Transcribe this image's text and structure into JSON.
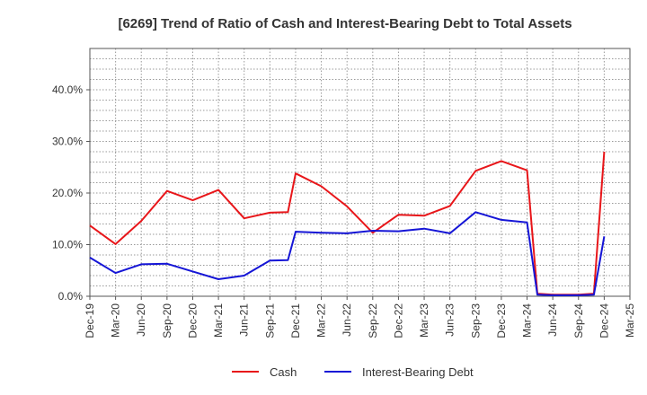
{
  "chart_data": {
    "type": "line",
    "title": "[6269]  Trend of Ratio of Cash and Interest-Bearing Debt to Total Assets",
    "xlabel": "",
    "ylabel": "",
    "ylim": [
      0,
      48
    ],
    "y_ticks": [
      0,
      10,
      20,
      30,
      40
    ],
    "y_tick_labels": [
      "0.0%",
      "10.0%",
      "20.0%",
      "30.0%",
      "40.0%"
    ],
    "x_tick_labels": [
      "Dec-19",
      "Mar-20",
      "Jun-20",
      "Sep-20",
      "Dec-20",
      "Mar-21",
      "Jun-21",
      "Sep-21",
      "Dec-21",
      "Mar-22",
      "Jun-22",
      "Sep-22",
      "Dec-22",
      "Mar-23",
      "Jun-23",
      "Sep-23",
      "Dec-23",
      "Mar-24",
      "Jun-24",
      "Sep-24",
      "Dec-24",
      "Mar-25"
    ],
    "grid": true,
    "legend_position": "bottom",
    "series": [
      {
        "name": "Cash",
        "color": "#e8161a",
        "points": [
          [
            0,
            13.7
          ],
          [
            1,
            10.1
          ],
          [
            2,
            14.6
          ],
          [
            3,
            20.4
          ],
          [
            4,
            18.6
          ],
          [
            5,
            20.6
          ],
          [
            6,
            15.1
          ],
          [
            7,
            16.2
          ],
          [
            7.7,
            16.3
          ],
          [
            8,
            23.8
          ],
          [
            9,
            21.3
          ],
          [
            10,
            17.4
          ],
          [
            11,
            12.3
          ],
          [
            12,
            15.8
          ],
          [
            13,
            15.6
          ],
          [
            14,
            17.5
          ],
          [
            15,
            24.3
          ],
          [
            16,
            26.2
          ],
          [
            17,
            24.4
          ],
          [
            17.4,
            0.5
          ],
          [
            18,
            0.3
          ],
          [
            19,
            0.3
          ],
          [
            19.6,
            0.5
          ],
          [
            20,
            28.0
          ]
        ]
      },
      {
        "name": "Interest-Bearing Debt",
        "color": "#1515d6",
        "points": [
          [
            0,
            7.5
          ],
          [
            1,
            4.5
          ],
          [
            2,
            6.2
          ],
          [
            3,
            6.3
          ],
          [
            4,
            4.8
          ],
          [
            5,
            3.3
          ],
          [
            6,
            4.0
          ],
          [
            7,
            6.9
          ],
          [
            7.7,
            7.0
          ],
          [
            8,
            12.5
          ],
          [
            9,
            12.3
          ],
          [
            10,
            12.2
          ],
          [
            11,
            12.7
          ],
          [
            12,
            12.6
          ],
          [
            13,
            13.1
          ],
          [
            14,
            12.2
          ],
          [
            15,
            16.3
          ],
          [
            16,
            14.8
          ],
          [
            17,
            14.3
          ],
          [
            17.4,
            0.3
          ],
          [
            18,
            0.2
          ],
          [
            19,
            0.2
          ],
          [
            19.6,
            0.3
          ],
          [
            20,
            11.6
          ]
        ]
      }
    ]
  }
}
